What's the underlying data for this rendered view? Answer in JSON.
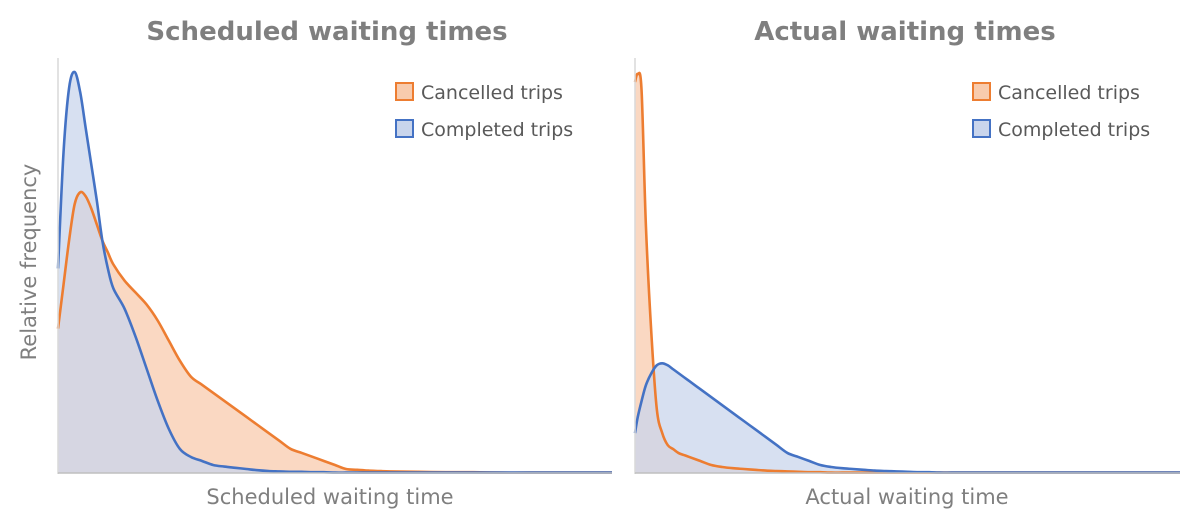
{
  "chart_data": [
    {
      "type": "area",
      "title": "Scheduled waiting times",
      "xlabel": "Scheduled waiting time",
      "ylabel": "Relative frequency",
      "ylim": [
        0,
        1
      ],
      "grid": false,
      "legend": "top-right",
      "x": [
        0,
        0.01,
        0.02,
        0.03,
        0.04,
        0.05,
        0.06,
        0.07,
        0.08,
        0.09,
        0.1,
        0.12,
        0.14,
        0.16,
        0.18,
        0.2,
        0.22,
        0.24,
        0.26,
        0.28,
        0.3,
        0.32,
        0.34,
        0.36,
        0.38,
        0.4,
        0.42,
        0.44,
        0.46,
        0.48,
        0.5,
        0.52,
        0.54,
        0.56,
        0.58,
        0.6,
        0.65,
        0.7,
        0.75,
        0.8,
        0.85,
        0.9,
        0.95,
        1.0
      ],
      "series": [
        {
          "name": "Cancelled trips",
          "color": "#ed7d31",
          "fill": "#f8cbad",
          "values": [
            0.36,
            0.47,
            0.58,
            0.67,
            0.7,
            0.69,
            0.66,
            0.62,
            0.58,
            0.55,
            0.52,
            0.48,
            0.45,
            0.42,
            0.38,
            0.33,
            0.28,
            0.24,
            0.22,
            0.2,
            0.18,
            0.16,
            0.14,
            0.12,
            0.1,
            0.08,
            0.06,
            0.05,
            0.04,
            0.03,
            0.02,
            0.01,
            0.008,
            0.006,
            0.005,
            0.004,
            0.003,
            0.002,
            0.002,
            0.001,
            0.001,
            0.001,
            0.001,
            0.001
          ]
        },
        {
          "name": "Completed trips",
          "color": "#4472c4",
          "fill": "#c9d5ec",
          "values": [
            0.51,
            0.8,
            0.96,
            1.0,
            0.95,
            0.86,
            0.77,
            0.68,
            0.58,
            0.51,
            0.46,
            0.41,
            0.34,
            0.26,
            0.18,
            0.11,
            0.06,
            0.04,
            0.03,
            0.02,
            0.016,
            0.013,
            0.01,
            0.007,
            0.005,
            0.004,
            0.003,
            0.003,
            0.002,
            0.002,
            0.001,
            0.001,
            0.001,
            0.001,
            0.001,
            0.001,
            0.001,
            0.001,
            0.001,
            0.001,
            0.001,
            0.001,
            0.001,
            0.001
          ]
        }
      ]
    },
    {
      "type": "area",
      "title": "Actual waiting times",
      "xlabel": "Actual waiting time",
      "ylabel": "",
      "ylim": [
        0,
        1
      ],
      "grid": false,
      "legend": "top-right",
      "x": [
        0,
        0.005,
        0.012,
        0.02,
        0.03,
        0.04,
        0.05,
        0.06,
        0.07,
        0.08,
        0.09,
        0.1,
        0.12,
        0.14,
        0.16,
        0.18,
        0.2,
        0.22,
        0.24,
        0.26,
        0.28,
        0.3,
        0.32,
        0.34,
        0.36,
        0.38,
        0.4,
        0.42,
        0.44,
        0.46,
        0.48,
        0.5,
        0.52,
        0.54,
        0.56,
        0.58,
        0.6,
        0.65,
        0.7,
        0.75,
        0.8,
        0.85,
        0.9,
        0.95,
        1.0
      ],
      "series": [
        {
          "name": "Cancelled trips",
          "color": "#ed7d31",
          "fill": "#f8cbad",
          "values": [
            0.98,
            1.0,
            0.96,
            0.62,
            0.35,
            0.16,
            0.1,
            0.07,
            0.06,
            0.05,
            0.045,
            0.04,
            0.03,
            0.02,
            0.015,
            0.012,
            0.01,
            0.008,
            0.006,
            0.005,
            0.004,
            0.003,
            0.002,
            0.002,
            0.001,
            0.001,
            0.001,
            0.001,
            0.001,
            0.001,
            0.001,
            0.001,
            0.001,
            0.001,
            0.001,
            0.001,
            0.001,
            0.001,
            0.001,
            0.001,
            0.001,
            0.001,
            0.001,
            0.001,
            0.001
          ]
        },
        {
          "name": "Completed trips",
          "color": "#4472c4",
          "fill": "#c9d5ec",
          "values": [
            0.1,
            0.14,
            0.18,
            0.22,
            0.25,
            0.27,
            0.275,
            0.27,
            0.26,
            0.25,
            0.24,
            0.23,
            0.21,
            0.19,
            0.17,
            0.15,
            0.13,
            0.11,
            0.09,
            0.07,
            0.05,
            0.04,
            0.03,
            0.02,
            0.015,
            0.012,
            0.01,
            0.008,
            0.006,
            0.005,
            0.004,
            0.003,
            0.002,
            0.002,
            0.001,
            0.001,
            0.001,
            0.001,
            0.001,
            0.001,
            0.001,
            0.001,
            0.001,
            0.001,
            0.001
          ]
        }
      ]
    }
  ]
}
